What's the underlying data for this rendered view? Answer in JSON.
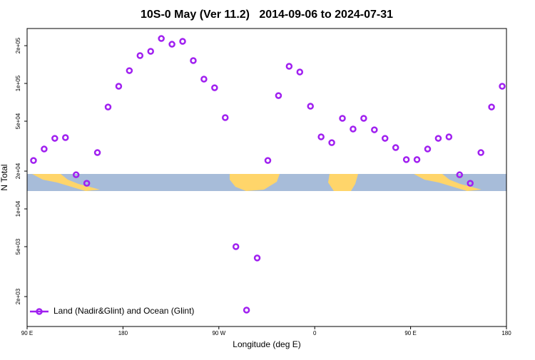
{
  "chart_data": {
    "type": "scatter",
    "title": "10S-0 May (Ver 11.2)   2014-09-06 to 2024-07-31",
    "x_label": "Longitude (deg E)",
    "y_label": "N Total",
    "log_y": true,
    "legend_position": "bottom-left",
    "xlim": [
      90,
      540
    ],
    "xticks": [
      {
        "value": 90,
        "label": "90 E"
      },
      {
        "value": 180,
        "label": "180"
      },
      {
        "value": 270,
        "label": "90 W"
      },
      {
        "value": 360,
        "label": "0"
      },
      {
        "value": 450,
        "label": "90 E"
      },
      {
        "value": 540,
        "label": "180"
      }
    ],
    "ylim": [
      1155,
      274000
    ],
    "yticks": [
      {
        "value": 2000,
        "label": "2e+03"
      },
      {
        "value": 5000,
        "label": "5e+03"
      },
      {
        "value": 10000,
        "label": "1e+04"
      },
      {
        "value": 20000,
        "label": "2e+04"
      },
      {
        "value": 50000,
        "label": "5e+04"
      },
      {
        "value": 100000,
        "label": "1e+05"
      },
      {
        "value": 200000,
        "label": "2e+05"
      }
    ],
    "series": [
      {
        "name": "Land (Nadir&Glint) and Ocean (Glint)",
        "color": "#a020f0",
        "x": [
          96,
          106,
          116,
          126,
          136,
          146,
          156,
          166,
          176,
          186,
          196,
          206,
          216,
          226,
          236,
          246,
          256,
          266,
          276,
          286,
          296,
          306,
          316,
          326,
          336,
          346,
          356,
          366,
          376,
          386,
          396,
          406,
          416,
          426,
          436,
          446,
          456,
          466,
          476,
          486,
          496,
          506,
          516,
          526,
          536
        ],
        "values": [
          24300,
          30000,
          36500,
          37000,
          18700,
          16000,
          28100,
          64900,
          94900,
          126500,
          166700,
          180300,
          228000,
          205300,
          216400,
          152000,
          108200,
          92400,
          53400,
          5000,
          1560,
          4060,
          24300,
          80000,
          136900,
          123300,
          65800,
          37500,
          33700,
          52700,
          43300,
          52700,
          42700,
          36500,
          30800,
          24700,
          24700,
          30000,
          36500,
          37500,
          18700,
          16000,
          28100,
          64900,
          94900
        ]
      }
    ]
  }
}
